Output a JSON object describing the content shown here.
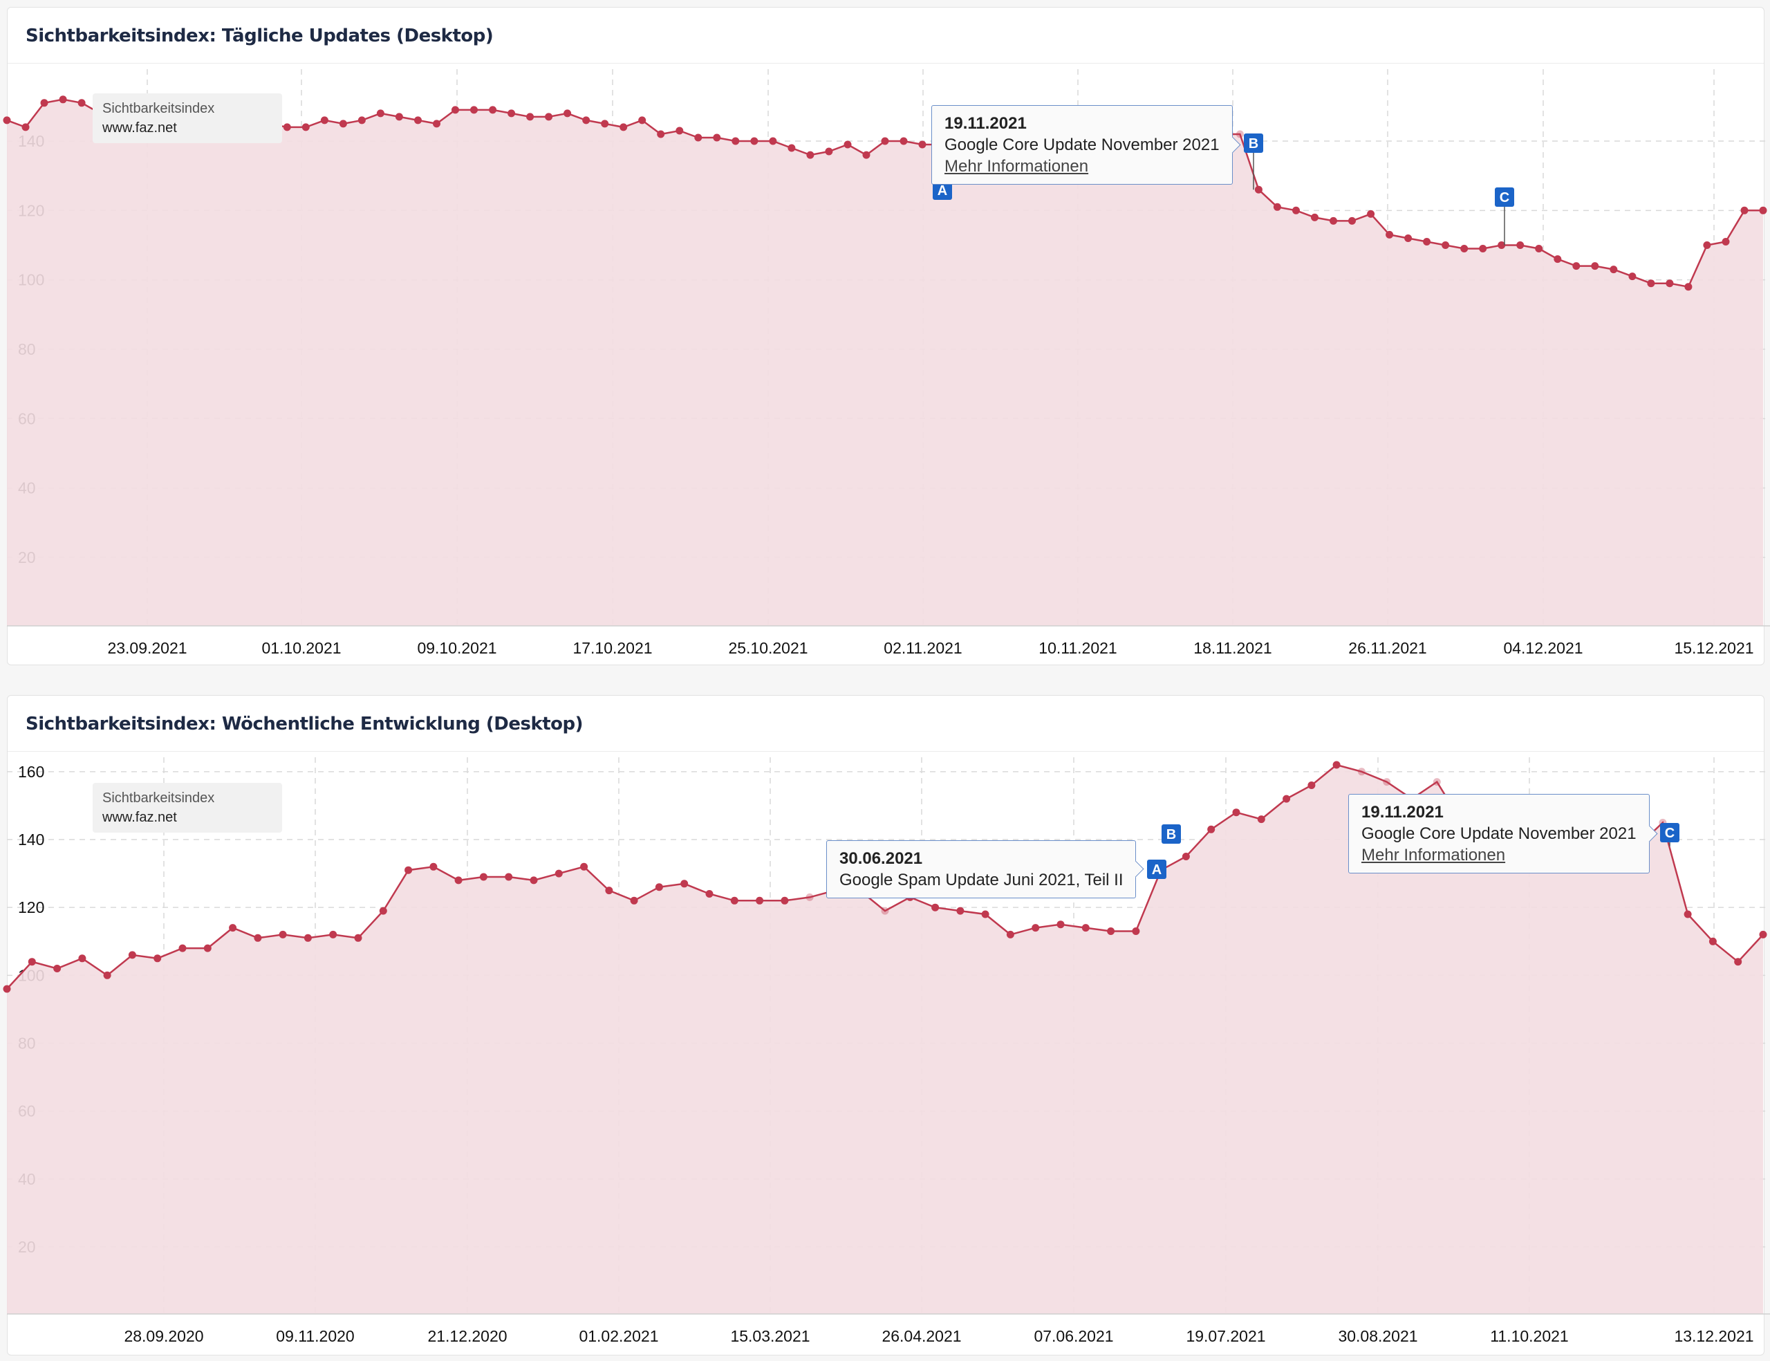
{
  "charts": [
    {
      "title": "Sichtbarkeitsindex: Tägliche Updates (Desktop)",
      "legend": {
        "label": "Sichtbarkeitsindex",
        "domain": "www.faz.net"
      },
      "tooltip": {
        "date": "19.11.2021",
        "text": "Google Core Update November 2021",
        "link": "Mehr Informationen"
      },
      "markers": [
        {
          "label": "A",
          "date": "02.11.2021"
        },
        {
          "label": "B",
          "date": "19.11.2021"
        },
        {
          "label": "C",
          "date": "03.12.2021"
        }
      ]
    },
    {
      "title": "Sichtbarkeitsindex: Wöchentliche Entwicklung (Desktop)",
      "legend": {
        "label": "Sichtbarkeitsindex",
        "domain": "www.faz.net"
      },
      "tooltip_a": {
        "date": "30.06.2021",
        "text": "Google Spam Update Juni 2021, Teil II"
      },
      "tooltip_c": {
        "date": "19.11.2021",
        "text": "Google Core Update November 2021",
        "link": "Mehr Informationen"
      },
      "markers": [
        {
          "label": "A",
          "date": "30.06.2021"
        },
        {
          "label": "B",
          "date": "06.07.2021"
        },
        {
          "label": "C",
          "date": "19.11.2021"
        }
      ]
    }
  ],
  "colors": {
    "line": "#c0394f",
    "area": "#f3dde1",
    "marker": "#1b64c8",
    "grid": "#d9d9d9"
  },
  "chart_data": [
    {
      "type": "area",
      "title": "Sichtbarkeitsindex: Tägliche Updates (Desktop)",
      "series_name": "Sichtbarkeitsindex",
      "x_start": "2021-09-14",
      "x_end": "2021-12-16",
      "x_ticks": [
        "23.09.2021",
        "01.10.2021",
        "09.10.2021",
        "17.10.2021",
        "25.10.2021",
        "02.11.2021",
        "10.11.2021",
        "18.11.2021",
        "26.11.2021",
        "04.12.2021",
        "15.12.2021"
      ],
      "y_ticks": [
        20,
        40,
        60,
        80,
        100,
        120,
        140
      ],
      "ylim": [
        0,
        160
      ],
      "grid": true,
      "legend_position": "top-left",
      "values": [
        146,
        144,
        151,
        152,
        151,
        148,
        146,
        145,
        146,
        145,
        146,
        144,
        144,
        143,
        145,
        144,
        144,
        146,
        145,
        146,
        148,
        147,
        146,
        145,
        149,
        149,
        149,
        148,
        147,
        147,
        148,
        146,
        145,
        144,
        146,
        142,
        143,
        141,
        141,
        140,
        140,
        140,
        138,
        136,
        137,
        139,
        136,
        140,
        140,
        139,
        139,
        138,
        138,
        137,
        137,
        138,
        140,
        141,
        142,
        143,
        142,
        143,
        140,
        142,
        143,
        142,
        142,
        126,
        121,
        120,
        118,
        117,
        117,
        119,
        113,
        112,
        111,
        110,
        109,
        109,
        110,
        110,
        109,
        106,
        104,
        104,
        103,
        101,
        99,
        99,
        98,
        110,
        111,
        120,
        120
      ],
      "annotations": [
        {
          "label": "A",
          "date": "2021-11-02"
        },
        {
          "label": "B",
          "date": "2021-11-19"
        },
        {
          "label": "C",
          "date": "2021-12-03"
        }
      ]
    },
    {
      "type": "area",
      "title": "Sichtbarkeitsindex: Wöchentliche Entwicklung (Desktop)",
      "series_name": "Sichtbarkeitsindex",
      "x_start": "2020-06-22",
      "x_end": "2021-12-27",
      "x_ticks": [
        "28.09.2020",
        "09.11.2020",
        "21.12.2020",
        "01.02.2021",
        "15.03.2021",
        "26.04.2021",
        "07.06.2021",
        "19.07.2021",
        "30.08.2021",
        "11.10.2021",
        "13.12.2021"
      ],
      "y_ticks": [
        20,
        40,
        60,
        80,
        100,
        120,
        140,
        160
      ],
      "ylim": [
        0,
        165
      ],
      "grid": true,
      "legend_position": "top-left",
      "values": [
        96,
        104,
        102,
        105,
        100,
        106,
        105,
        108,
        108,
        114,
        111,
        112,
        111,
        112,
        111,
        119,
        131,
        132,
        128,
        129,
        129,
        128,
        130,
        132,
        125,
        122,
        126,
        127,
        124,
        122,
        122,
        122,
        123,
        125,
        125,
        119,
        123,
        120,
        119,
        118,
        112,
        114,
        115,
        114,
        113,
        113,
        131,
        135,
        143,
        148,
        146,
        152,
        156,
        162,
        160,
        157,
        152,
        157,
        145,
        146,
        149,
        145,
        142,
        140,
        137,
        138,
        145,
        118,
        110,
        104,
        112
      ],
      "annotations": [
        {
          "label": "A",
          "date": "2021-06-30"
        },
        {
          "label": "B",
          "date": "2021-07-06"
        },
        {
          "label": "C",
          "date": "2021-11-19"
        }
      ]
    }
  ]
}
